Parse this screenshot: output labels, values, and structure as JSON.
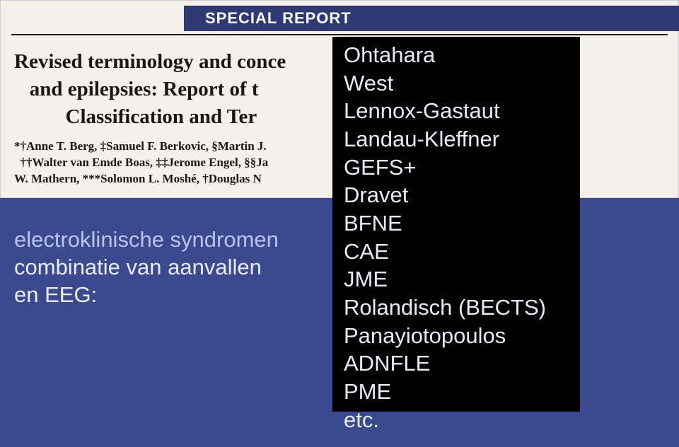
{
  "colors": {
    "page_bg": "#3b4a8f",
    "paper_bg": "#f4f0ea",
    "header_band_bg": "#2f3a75",
    "header_text": "#ffffff",
    "rule": "#1e1a16",
    "title_text": "#1a1612",
    "left_primary": "#bac4ed",
    "left_secondary": "#e9ecf8",
    "box_bg": "#000000",
    "box_text": "#e9ecf7"
  },
  "header": {
    "label": "SPECIAL REPORT"
  },
  "title": {
    "line1": "Revised terminology and conce                                       f seizures",
    "line2": "   and epilepsies: Report of t                                          on",
    "line3": "          Classification and Ter"
  },
  "authors": {
    "line1": "*†Anne T. Berg, ‡Samuel F. Berkovic, §Martin J.                                             . Helen Cross,",
    "line2": "  ††Walter van Emde Boas, ‡‡Jerome Engel, §§Ja                                        user, ##Gary",
    "line3": "W. Mathern, ***Solomon L. Moshé, †Douglas N                                           rid E. Scheffer"
  },
  "left_panel": {
    "line1": "electroklinische syndromen",
    "line2": "combinatie van aanvallen",
    "line3": "en EEG:"
  },
  "syndromes": {
    "items": [
      "Ohtahara",
      "West",
      "Lennox-Gastaut",
      "Landau-Kleffner",
      "GEFS+",
      "Dravet",
      "BFNE",
      "CAE",
      "JME",
      "Rolandisch (BECTS)",
      "Panayiotopoulos",
      "ADNFLE",
      "PME",
      "etc."
    ]
  }
}
